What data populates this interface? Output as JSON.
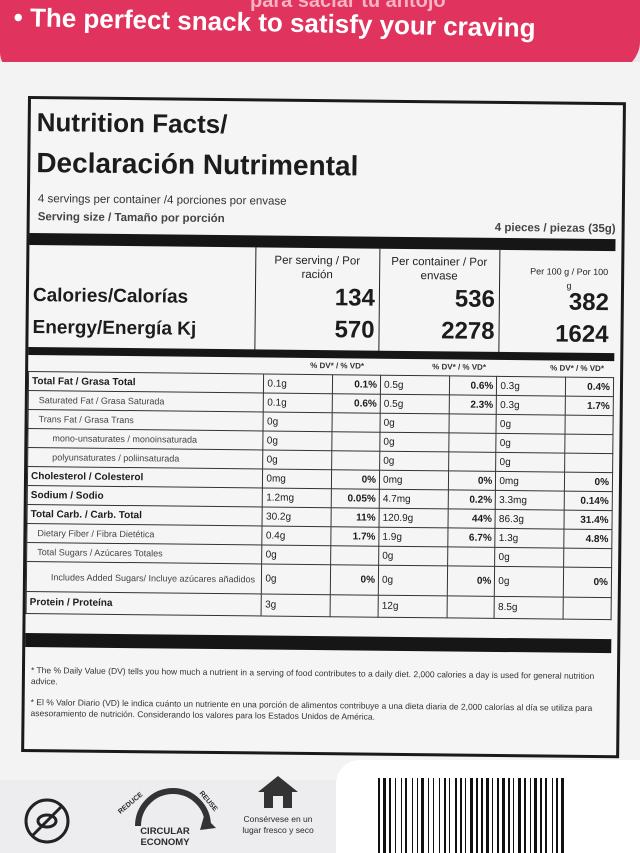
{
  "banner": {
    "spanish": "para saciar tu antojo",
    "english": "• The perfect snack to satisfy your craving"
  },
  "label": {
    "title_en": "Nutrition Facts/",
    "title_es": "Declaración Nutrimental",
    "servings": "4 servings per container /4 porciones por envase",
    "serving_size_label": "Serving size / Tamaño por porción",
    "serving_size_value": "4 pieces / piezas (35g)",
    "col_headers": {
      "per_serving": "Per serving / Por ración",
      "per_container": "Per container / Por envase",
      "per_100g": "Per 100 g / Por 100 g"
    },
    "calories": {
      "label": "Calories/Calorías",
      "serving": "134",
      "container": "536",
      "per100": "382"
    },
    "energy": {
      "label": "Energy/Energía Kj",
      "serving": "570",
      "container": "2278",
      "per100": "1624"
    },
    "dv_header": "% DV* / % VD*",
    "rows": [
      {
        "name": "Total Fat / Grasa  Total",
        "s": "0.1g",
        "sdv": "0.1%",
        "c": "0.5g",
        "cdv": "0.6%",
        "p": "0.3g",
        "pdv": "0.4%",
        "style": "bold"
      },
      {
        "name": "Saturated Fat / Grasa Saturada",
        "s": "0.1g",
        "sdv": "0.6%",
        "c": "0.5g",
        "cdv": "2.3%",
        "p": "0.3g",
        "pdv": "1.7%",
        "style": "indent1 small"
      },
      {
        "name": "Trans Fat / Grasa Trans",
        "s": "0g",
        "sdv": "",
        "c": "0g",
        "cdv": "",
        "p": "0g",
        "pdv": "",
        "style": "indent1 small"
      },
      {
        "name": "mono-unsaturates / monoinsaturada",
        "s": "0g",
        "sdv": "",
        "c": "0g",
        "cdv": "",
        "p": "0g",
        "pdv": "",
        "style": "indent2 small"
      },
      {
        "name": "polyunsaturates / poliinsaturada",
        "s": "0g",
        "sdv": "",
        "c": "0g",
        "cdv": "",
        "p": "0g",
        "pdv": "",
        "style": "indent2 small"
      },
      {
        "name": "Cholesterol / Colesterol",
        "s": "0mg",
        "sdv": "0%",
        "c": "0mg",
        "cdv": "0%",
        "p": "0mg",
        "pdv": "0%",
        "style": "bold"
      },
      {
        "name": "Sodium / Sodio",
        "s": "1.2mg",
        "sdv": "0.05%",
        "c": "4.7mg",
        "cdv": "0.2%",
        "p": "3.3mg",
        "pdv": "0.14%",
        "style": "bold"
      },
      {
        "name": "Total Carb. / Carb. Total",
        "s": "30.2g",
        "sdv": "11%",
        "c": "120.9g",
        "cdv": "44%",
        "p": "86.3g",
        "pdv": "31.4%",
        "style": "bold"
      },
      {
        "name": "Dietary Fiber / Fibra Dietética",
        "s": "0.4g",
        "sdv": "1.7%",
        "c": "1.9g",
        "cdv": "6.7%",
        "p": "1.3g",
        "pdv": "4.8%",
        "style": "indent1 small"
      },
      {
        "name": "Total Sugars / Azúcares Totales",
        "s": "0g",
        "sdv": "",
        "c": "0g",
        "cdv": "",
        "p": "0g",
        "pdv": "",
        "style": "indent1 small"
      },
      {
        "name": "Includes Added Sugars/ Incluye azúcares añadidos",
        "s": "0g",
        "sdv": "0%",
        "c": "0g",
        "cdv": "0%",
        "p": "0g",
        "pdv": "0%",
        "style": "indent2 small"
      },
      {
        "name": "Protein / Proteína",
        "s": "3g",
        "sdv": "",
        "c": "12g",
        "cdv": "",
        "p": "8.5g",
        "pdv": "",
        "style": "bold"
      }
    ],
    "footnote_en": "* The % Daily Value (DV) tells you how much a nutrient in a serving of food contributes to a daily diet. 2,000 calories a day is used for general nutrition advice.",
    "footnote_es": "* El % Valor Diario (VD) le indica cuánto un nutriente en una porción de alimentos contribuye a una dieta diaria de 2,000 calorías al día se utiliza para asesoramiento de nutrición. Considerando los valores para los Estados Unidos de América."
  },
  "footer": {
    "circular": "CIRCULAR ECONOMY",
    "reduce": "REDUCE",
    "reuse": "REUSE",
    "storage": "Consérvese en un lugar fresco y seco"
  }
}
